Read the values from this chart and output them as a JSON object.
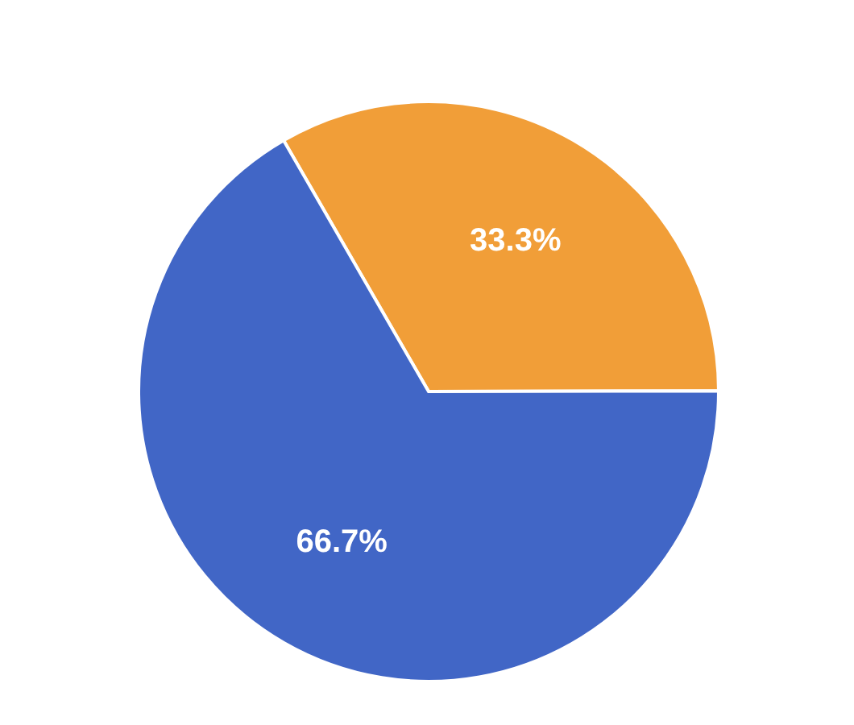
{
  "chart_data": {
    "type": "pie",
    "categories": [
      null,
      null
    ],
    "values": [
      33.3,
      66.7
    ],
    "colors": [
      "#f19e38",
      "#4166c6"
    ],
    "value_labels": [
      "33.3%",
      "66.7%"
    ]
  }
}
